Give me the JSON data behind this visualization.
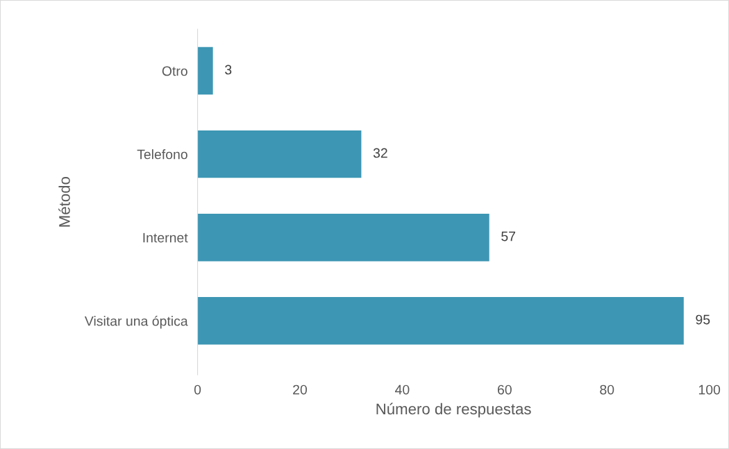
{
  "chart_data": {
    "type": "bar",
    "orientation": "horizontal",
    "xlabel": "Número de respuestas",
    "ylabel": "Método",
    "categories": [
      "Otro",
      "Telefono",
      "Internet",
      "Visitar una óptica"
    ],
    "values": [
      3,
      32,
      57,
      95
    ],
    "color": "#3d96b4",
    "data_labels": true,
    "xlim": [
      0,
      100
    ],
    "xticks": [
      0,
      20,
      40,
      60,
      80,
      100
    ],
    "grid": false,
    "legend": false
  }
}
